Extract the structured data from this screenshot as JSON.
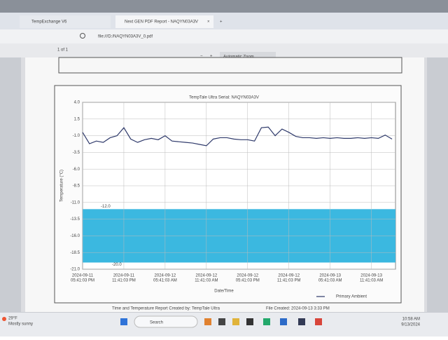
{
  "browser": {
    "tabs": [
      "TempExchange V6",
      "Next GEN PDF Report - NAQYN03A3V"
    ],
    "url": "file:///D:/NAQYN03A3V_0.pdf",
    "page": "1 of 1",
    "zoom": "Automatic Zoom"
  },
  "chart_data": {
    "type": "line",
    "title": "TempTale Ultra Serial: NAQYN03A3V",
    "ylabel": "Temperature (°C)",
    "xlabel": "Date/Time",
    "x": [
      0,
      1,
      2,
      3,
      4,
      5,
      6,
      7,
      8,
      9,
      10,
      11,
      12,
      13,
      14,
      15,
      16,
      17,
      18,
      19,
      20,
      21,
      22,
      23,
      24,
      25,
      26,
      27,
      28,
      29,
      30,
      31,
      32,
      33,
      34,
      35,
      36,
      37,
      38,
      39,
      40,
      41,
      42,
      43,
      44,
      45
    ],
    "series": [
      {
        "name": "Primary Ambient",
        "color": "#2f3a6b",
        "values": [
          -0.5,
          -2.2,
          -1.8,
          -2.0,
          -1.3,
          -1.0,
          0.2,
          -1.5,
          -2.0,
          -1.6,
          -1.4,
          -1.6,
          -1.0,
          -1.8,
          -1.9,
          -2.0,
          -2.1,
          -2.3,
          -2.5,
          -1.5,
          -1.3,
          -1.3,
          -1.5,
          -1.6,
          -1.6,
          -1.8,
          0.2,
          0.3,
          -1.0,
          0.0,
          -0.5,
          -1.1,
          -1.3,
          -1.3,
          -1.4,
          -1.3,
          -1.4,
          -1.3,
          -1.4,
          -1.4,
          -1.3,
          -1.4,
          -1.3,
          -1.4,
          -0.9,
          -1.5
        ]
      }
    ],
    "band": {
      "range": [
        -20,
        -12
      ],
      "labels": [
        "-20.0",
        "-12.0"
      ],
      "color": "#3bb8e0"
    },
    "xlim": [
      0,
      45.5
    ],
    "xticks": [
      {
        "value": 0,
        "label": [
          "2024-09-11",
          "05:41:03 PM"
        ]
      },
      {
        "value": 6,
        "label": [
          "2024-09-11",
          "11:41:03 PM"
        ]
      },
      {
        "value": 12,
        "label": [
          "2024-09-12",
          "05:41:03 AM"
        ]
      },
      {
        "value": 18,
        "label": [
          "2024-09-12",
          "11:41:03 AM"
        ]
      },
      {
        "value": 24,
        "label": [
          "2024-09-12",
          "05:41:03 PM"
        ]
      },
      {
        "value": 30,
        "label": [
          "2024-09-12",
          "11:41:03 PM"
        ]
      },
      {
        "value": 36,
        "label": [
          "2024-09-13",
          "05:41:03 AM"
        ]
      },
      {
        "value": 42,
        "label": [
          "2024-09-13",
          "11:41:03 AM"
        ]
      }
    ],
    "ylim": [
      -21,
      4
    ],
    "yticks": [
      {
        "value": 4,
        "label": "4.0"
      },
      {
        "value": 1.5,
        "label": "1.5"
      },
      {
        "value": -1,
        "label": "-1.0"
      },
      {
        "value": -3.5,
        "label": "-3.5"
      },
      {
        "value": -6,
        "label": "-6.0"
      },
      {
        "value": -8.5,
        "label": "-8.5"
      },
      {
        "value": -11,
        "label": "-11.0"
      },
      {
        "value": -13.5,
        "label": "-13.5"
      },
      {
        "value": -16,
        "label": "-16.0"
      },
      {
        "value": -18.5,
        "label": "-18.5"
      },
      {
        "value": -21,
        "label": "-21.0"
      }
    ],
    "grid": true
  },
  "footer": {
    "left": "Time and Temperature Report Created by: TempTale Ultra",
    "right": "File Created: 2024-09-13 3:33 PM"
  },
  "taskbar": {
    "weather": "29°F",
    "condition": "Mostly sunny",
    "search": "Search",
    "time": "10:58 AM",
    "date": "9/13/2024"
  }
}
